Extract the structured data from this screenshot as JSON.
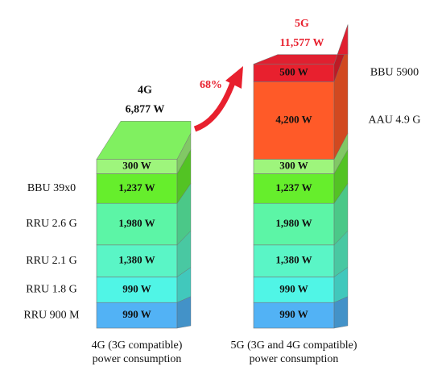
{
  "chart_data": {
    "type": "bar",
    "categories": [
      "4G (3G compatible) power consumption",
      "5G (3G and 4G compatible) power consumption"
    ],
    "headers": [
      "4G",
      "5G"
    ],
    "totals": [
      6877,
      11577
    ],
    "total_labels": [
      "6,877 W",
      "11,577 W"
    ],
    "total_colors": [
      "#111111",
      "#e8202e"
    ],
    "top_face_colors": [
      "#80f060",
      "#e02030"
    ],
    "annotation": "68%",
    "annotation_color": "#e8202e",
    "series": [
      {
        "name": "RRU 900 M",
        "color": "#52b2f5",
        "values": [
          990,
          990
        ],
        "value_labels": [
          "990 W",
          "990 W"
        ]
      },
      {
        "name": "RRU 1.8 G",
        "color": "#50f5e6",
        "values": [
          990,
          990
        ],
        "value_labels": [
          "990 W",
          "990 W"
        ]
      },
      {
        "name": "RRU 2.1 G",
        "color": "#5af5c6",
        "values": [
          1380,
          1380
        ],
        "value_labels": [
          "1,380 W",
          "1,380 W"
        ]
      },
      {
        "name": "RRU 2.6 G",
        "color": "#5cf5a6",
        "values": [
          1980,
          1980
        ],
        "value_labels": [
          "1,980 W",
          "1,980 W"
        ]
      },
      {
        "name": "BBU 39x0",
        "color": "#66ee2c",
        "values": [
          1237,
          1237
        ],
        "value_labels": [
          "1,237 W",
          "1,237 W"
        ]
      },
      {
        "color": "#9ef57c",
        "values": [
          300,
          300
        ],
        "value_labels": [
          "300 W",
          "300 W"
        ]
      },
      {
        "name": "AAU 4.9 G",
        "color": "#ff5a28",
        "values": [
          null,
          4200
        ],
        "value_labels": [
          null,
          "4,200 W"
        ]
      },
      {
        "name": "BBU 5900",
        "color": "#e8202e",
        "values": [
          null,
          500
        ],
        "value_labels": [
          null,
          "500 W"
        ]
      }
    ]
  }
}
